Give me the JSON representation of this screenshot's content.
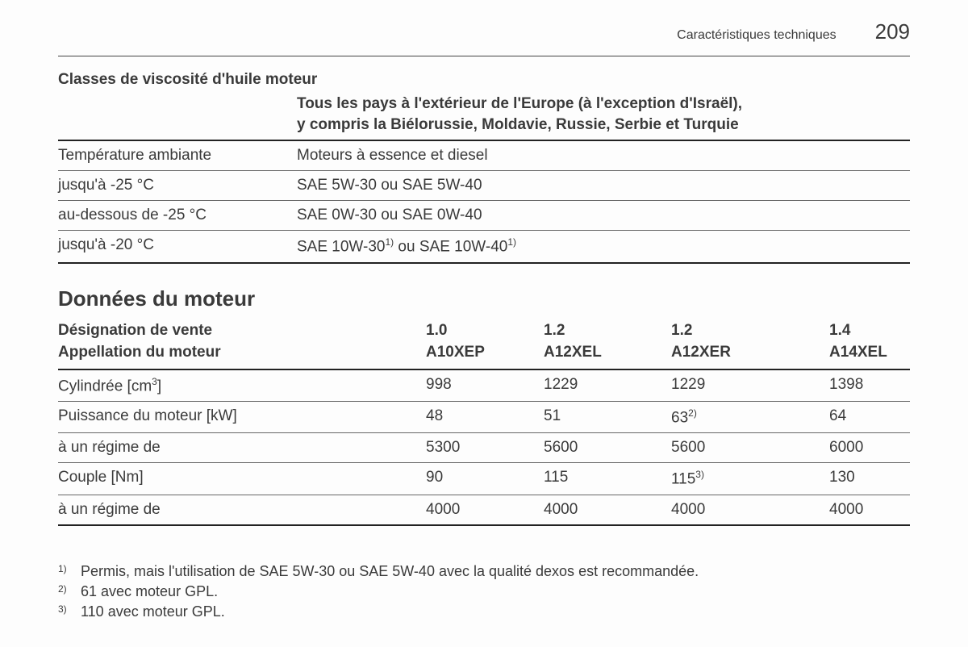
{
  "header": {
    "title": "Caractéristiques techniques",
    "page": "209"
  },
  "oil": {
    "section_title": "Classes de viscosité d'huile moteur",
    "subtitle_line1": "Tous les pays à l'extérieur de l'Europe (à l'exception d'Israël),",
    "subtitle_line2": "y compris la Biélorussie, Moldavie, Russie, Serbie et Turquie",
    "rows": [
      {
        "c1": "Température ambiante",
        "c2": "Moteurs à essence et diesel",
        "sup": ""
      },
      {
        "c1": "jusqu'à -25 °C",
        "c2": "SAE 5W-30 ou SAE 5W-40",
        "sup": ""
      },
      {
        "c1": "au-dessous de -25 °C",
        "c2": "SAE 0W-30 ou SAE 0W-40",
        "sup": ""
      }
    ],
    "last_row": {
      "c1": "jusqu'à -20 °C",
      "c2a": "SAE 10W-30",
      "c2sup1": "1)",
      "c2b": " ou SAE 10W-40",
      "c2sup2": "1)"
    }
  },
  "engine": {
    "heading": "Données du moteur",
    "head_label1": "Désignation de vente",
    "head_label2": "Appellation du moteur",
    "cols": {
      "v": [
        "1.0",
        "1.2",
        "1.2",
        "1.4"
      ],
      "code": [
        "A10XEP",
        "A12XEL",
        "A12XER",
        "A14XEL"
      ]
    },
    "rows": [
      {
        "label": "Cylindrée [cm",
        "label_sup": "3",
        "label_after": "]",
        "v": [
          "998",
          "1229",
          "1229",
          "1398"
        ],
        "sup": [
          "",
          "",
          "",
          ""
        ]
      },
      {
        "label": "Puissance du moteur [kW]",
        "label_sup": "",
        "label_after": "",
        "v": [
          "48",
          "51",
          "63",
          "64"
        ],
        "sup": [
          "",
          "",
          "2)",
          ""
        ]
      },
      {
        "label": "à un régime de",
        "label_sup": "",
        "label_after": "",
        "v": [
          "5300",
          "5600",
          "5600",
          "6000"
        ],
        "sup": [
          "",
          "",
          "",
          ""
        ]
      },
      {
        "label": "Couple [Nm]",
        "label_sup": "",
        "label_after": "",
        "v": [
          "90",
          "115",
          "115",
          "130"
        ],
        "sup": [
          "",
          "",
          "3)",
          ""
        ]
      },
      {
        "label": "à un régime de",
        "label_sup": "",
        "label_after": "",
        "v": [
          "4000",
          "4000",
          "4000",
          "4000"
        ],
        "sup": [
          "",
          "",
          "",
          ""
        ]
      }
    ]
  },
  "footnotes": [
    {
      "mark": "1)",
      "text": "Permis, mais l'utilisation de SAE 5W-30 ou SAE 5W-40 avec la qualité dexos est recommandée."
    },
    {
      "mark": "2)",
      "text": "61 avec moteur GPL."
    },
    {
      "mark": "3)",
      "text": "110 avec moteur GPL."
    }
  ]
}
